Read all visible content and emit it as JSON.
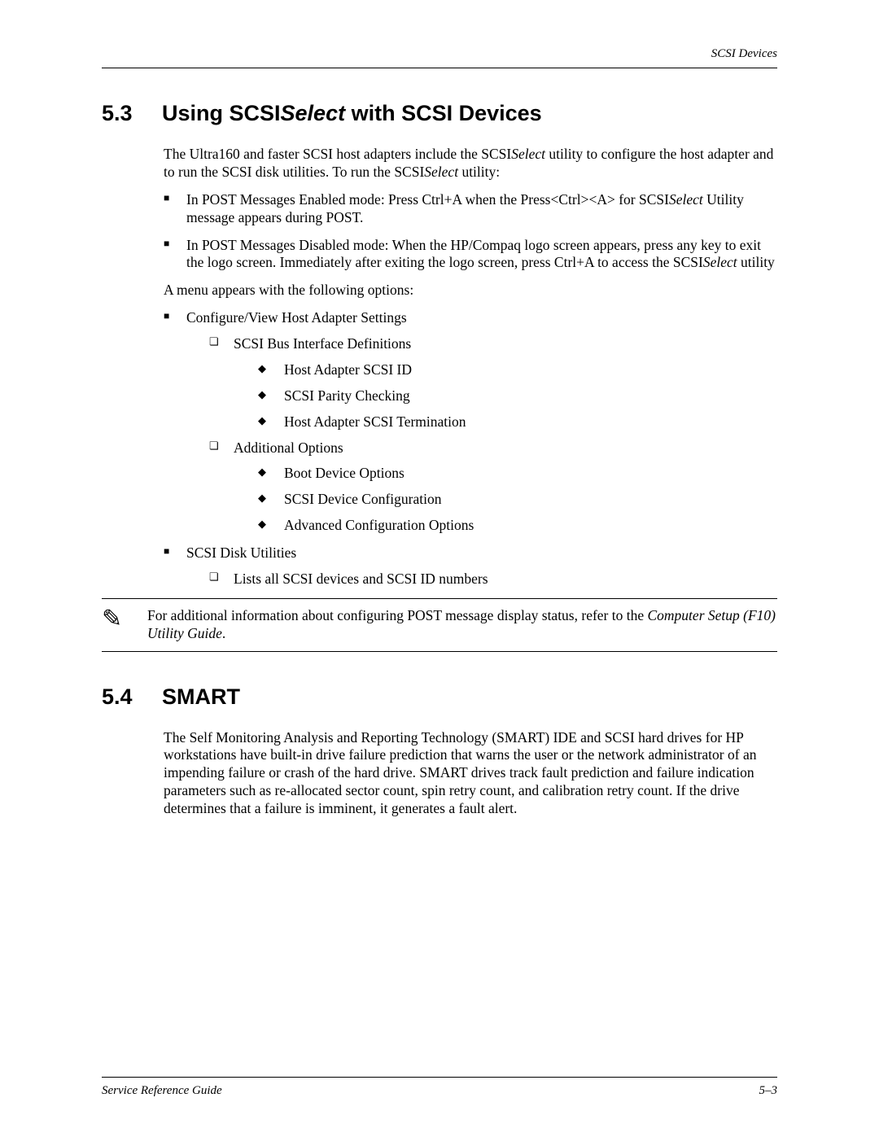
{
  "header": {
    "running_head": "SCSI Devices"
  },
  "section53": {
    "number": "5.3",
    "title_pre": "Using SCSI",
    "title_italic": "Select",
    "title_post": " with SCSI Devices",
    "intro_pre": "The Ultra160 and faster SCSI host adapters include the SCSI",
    "intro_italic1": "Select",
    "intro_mid": " utility to configure the host adapter and to run the SCSI disk utilities. To run the SCSI",
    "intro_italic2": "Select",
    "intro_end": " utility:",
    "bullet1_pre": "In POST Messages Enabled mode: Press Ctrl+A when the Press<Ctrl><A> for SCSI",
    "bullet1_italic": "Select",
    "bullet1_post": " Utility message appears during POST.",
    "bullet2_pre": "In POST Messages Disabled mode: When the HP/Compaq logo screen appears, press any key to exit the logo screen. Immediately after exiting the logo screen, press Ctrl+A to access the SCSI",
    "bullet2_italic": "Select",
    "bullet2_post": " utility",
    "menu_intro": "A menu appears with the following options:",
    "opt1": "Configure/View Host Adapter Settings",
    "opt1_sub1": "SCSI Bus Interface Definitions",
    "opt1_sub1_d1": "Host Adapter SCSI ID",
    "opt1_sub1_d2": "SCSI Parity Checking",
    "opt1_sub1_d3": "Host Adapter SCSI Termination",
    "opt1_sub2": "Additional Options",
    "opt1_sub2_d1": "Boot Device Options",
    "opt1_sub2_d2": "SCSI Device Configuration",
    "opt1_sub2_d3": "Advanced Configuration Options",
    "opt2": "SCSI Disk Utilities",
    "opt2_sub1": "Lists all SCSI devices and SCSI ID numbers",
    "note_pre": "For additional information about configuring POST message display status, refer to the ",
    "note_italic": "Computer Setup (F10) Utility Guide",
    "note_post": "."
  },
  "section54": {
    "number": "5.4",
    "title": "SMART",
    "body": "The Self Monitoring Analysis and Reporting Technology (SMART) IDE and SCSI hard drives for HP workstations have built-in drive failure prediction that warns the user or the network administrator of an impending failure or crash of the hard drive. SMART drives track fault prediction and failure indication parameters such as re-allocated sector count, spin retry count, and calibration retry count. If the drive determines that a failure is imminent, it generates a fault alert."
  },
  "footer": {
    "left": "Service Reference Guide",
    "right": "5–3"
  },
  "colors": {
    "text": "#000000",
    "background": "#ffffff",
    "rule": "#000000"
  },
  "typography": {
    "body_font": "Times New Roman",
    "heading_font": "Arial",
    "body_size_pt": 13,
    "heading_size_pt": 20
  }
}
